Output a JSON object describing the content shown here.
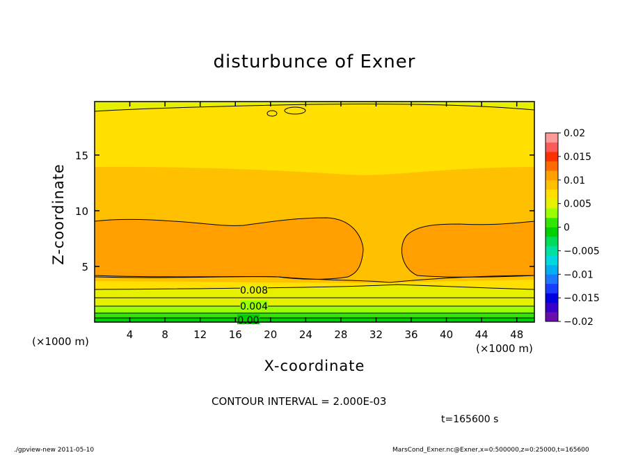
{
  "chart_data": {
    "type": "heatmap",
    "title": "disturbunce of Exner",
    "xlabel": "X-coordinate",
    "ylabel": "Z-coordinate",
    "x_unit": "(×1000 m)",
    "xlim": [
      0,
      50
    ],
    "ylim": [
      0,
      19.8
    ],
    "x_ticks": [
      4,
      8,
      12,
      16,
      20,
      24,
      28,
      32,
      36,
      40,
      44,
      48
    ],
    "y_ticks": [
      5,
      10,
      15
    ],
    "colorbar": {
      "levels": [
        -0.02,
        -0.018,
        -0.016,
        -0.014,
        -0.012,
        -0.01,
        -0.008,
        -0.006,
        -0.004,
        -0.002,
        0,
        0.002,
        0.004,
        0.006,
        0.008,
        0.01,
        0.012,
        0.014,
        0.016,
        0.018,
        0.02
      ],
      "colors": [
        "#6a0dad",
        "#3a00c8",
        "#0000e0",
        "#1a3cff",
        "#1e78ff",
        "#00b0f0",
        "#00d8e0",
        "#00e0a0",
        "#00dc5a",
        "#00d000",
        "#32e600",
        "#9aff00",
        "#e6f000",
        "#ffe000",
        "#ffc000",
        "#ffa000",
        "#ff6a00",
        "#ff3000",
        "#ff5a5a",
        "#ff9a9a"
      ],
      "tick_labels": [
        "0.02",
        "0.015",
        "0.01",
        "0.005",
        "0",
        "−0.005",
        "−0.01",
        "−0.015",
        "−0.02"
      ],
      "tick_values": [
        0.02,
        0.015,
        0.01,
        0.005,
        0,
        -0.005,
        -0.01,
        -0.015,
        -0.02
      ]
    },
    "contour_labels": [
      "0.008",
      "0.004",
      "0.00"
    ],
    "contour_interval": "CONTOUR INTERVAL = 2.000E-03",
    "time": "t=165600 s"
  },
  "footer": {
    "left": "./gpview-new   2011-05-10",
    "right": "MarsCond_Exner.nc@Exner,x=0:500000,z=0:25000,t=165600"
  }
}
